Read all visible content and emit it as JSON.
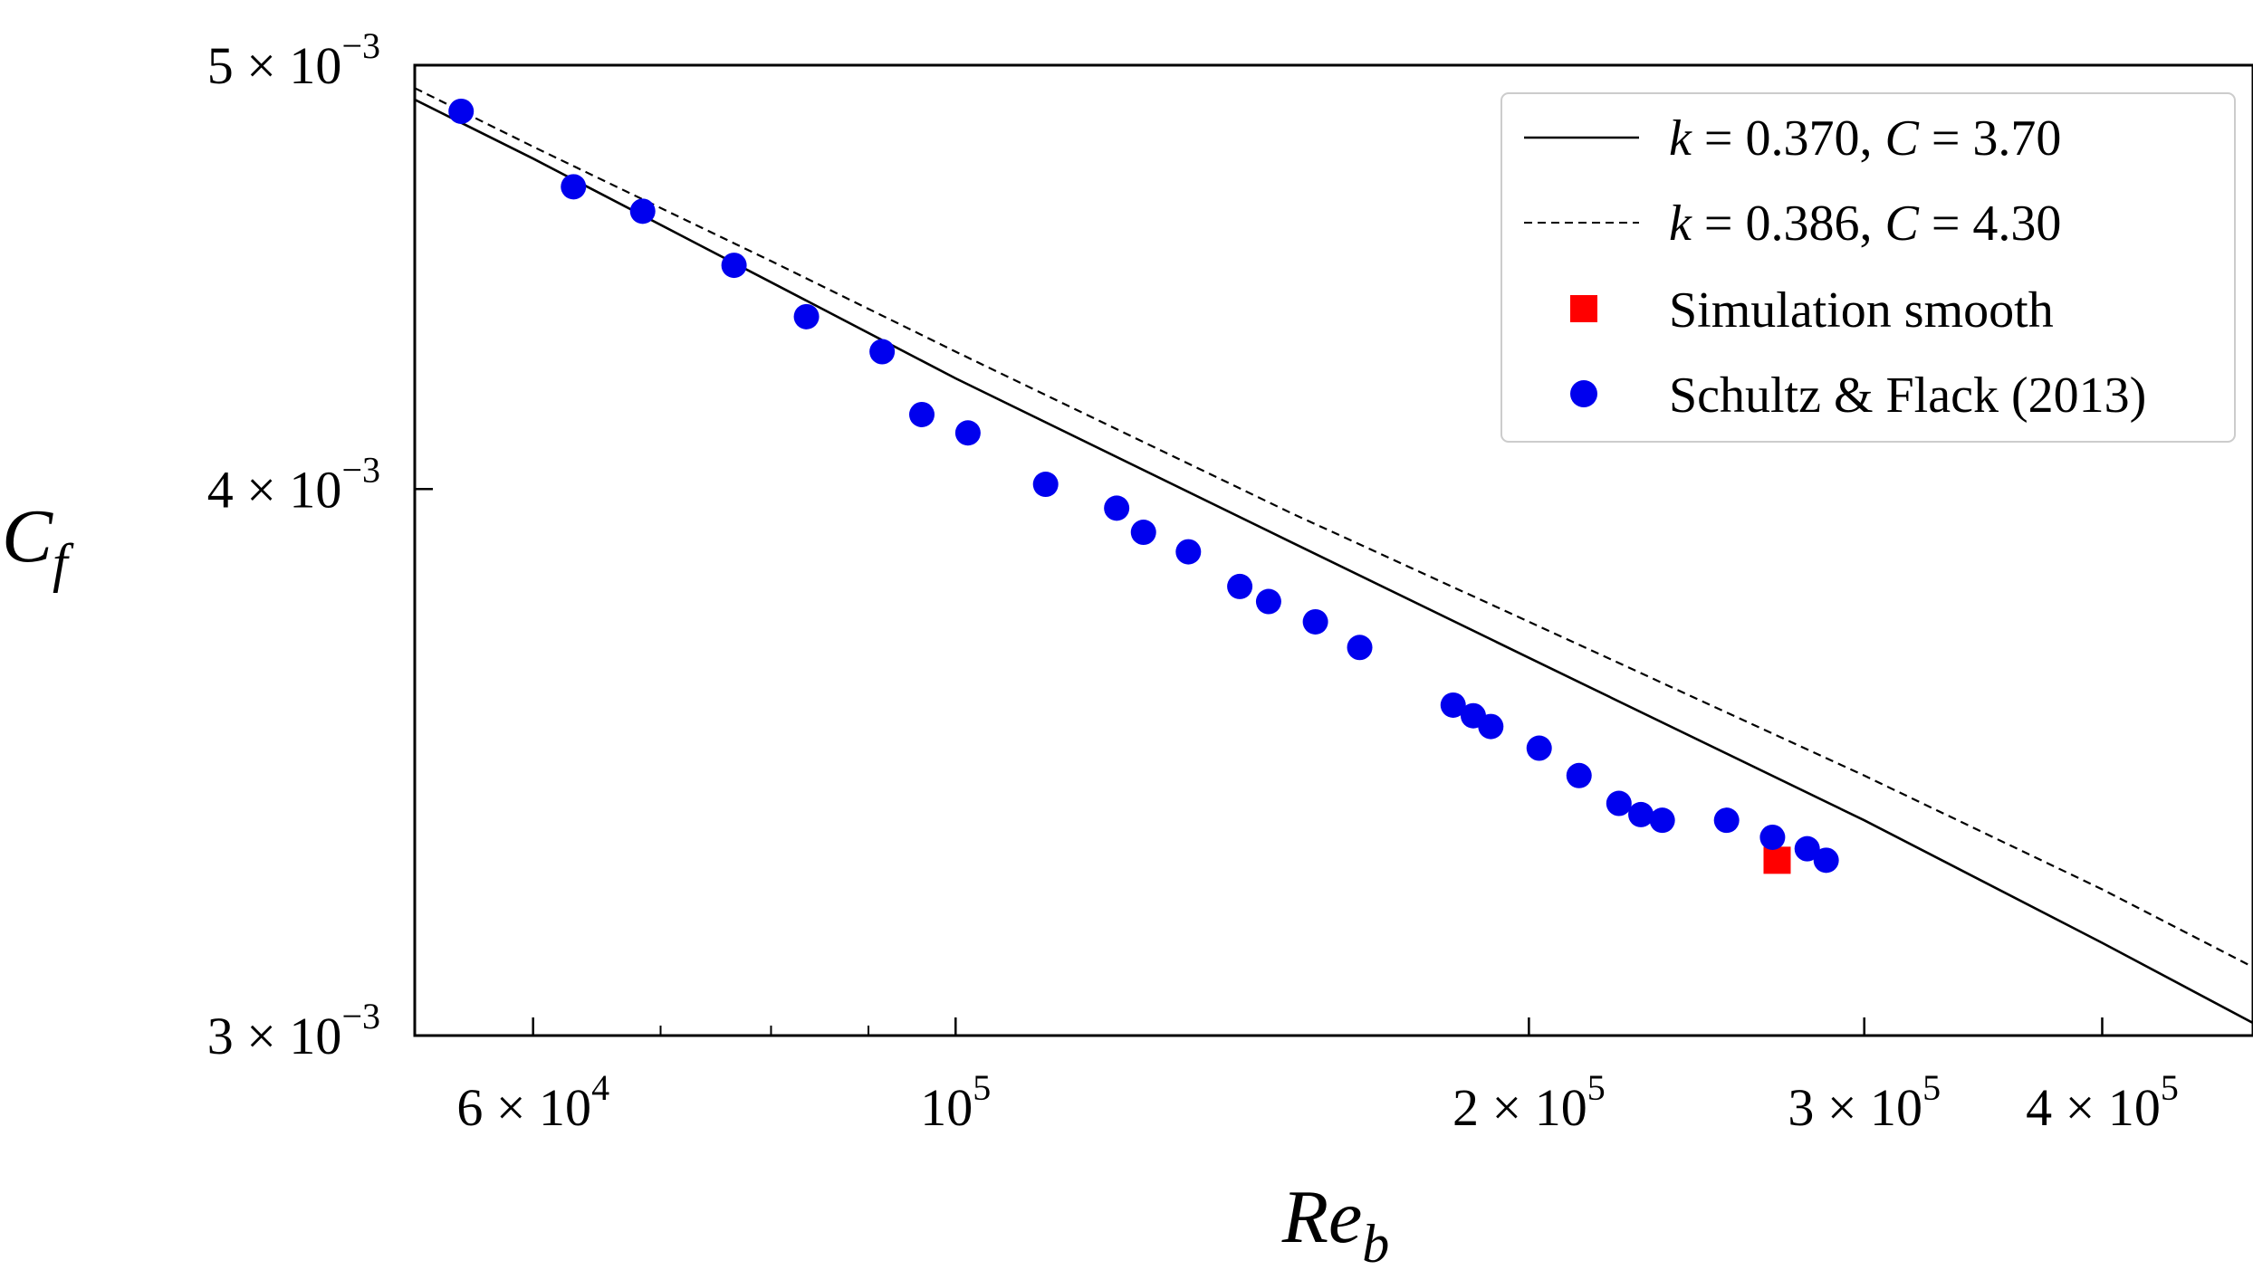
{
  "chart_data": {
    "type": "scatter",
    "xlabel": "Re",
    "xlabel_sub": "b",
    "ylabel": "C",
    "ylabel_sub": "f",
    "x_scale": "log",
    "y_scale": "log",
    "xlim": [
      52000,
      480000
    ],
    "ylim": [
      0.003,
      0.005
    ],
    "grid": false,
    "legend_position": "top-right",
    "x_ticks": [
      {
        "value": 60000,
        "mant": "6 × 10",
        "exp": "4"
      },
      {
        "value": 100000,
        "mant": "10",
        "exp": "5"
      },
      {
        "value": 200000,
        "mant": "2 × 10",
        "exp": "5"
      },
      {
        "value": 300000,
        "mant": "3 × 10",
        "exp": "5"
      },
      {
        "value": 400000,
        "mant": "4 × 10",
        "exp": "5"
      }
    ],
    "x_minor_ticks": [
      70000,
      80000,
      90000,
      300000
    ],
    "y_ticks": [
      {
        "value": 0.005,
        "mant": "5 × 10",
        "exp": "−3"
      },
      {
        "value": 0.004,
        "mant": "4 × 10",
        "exp": "−3"
      },
      {
        "value": 0.003,
        "mant": "3 × 10",
        "exp": "−3"
      }
    ],
    "series": [
      {
        "name_k": "k",
        "name_k_val": " = 0.370, ",
        "name_c": "C",
        "name_c_val": " = 3.70",
        "kind": "line",
        "style": "solid",
        "color": "#000000",
        "x": [
          52000,
          60000,
          80000,
          100000,
          150000,
          200000,
          300000,
          400000,
          480000
        ],
        "y": [
          0.00491,
          0.00476,
          0.00446,
          0.00424,
          0.00389,
          0.00366,
          0.00336,
          0.00315,
          0.00302
        ]
      },
      {
        "name_k": "k",
        "name_k_val": " = 0.386, ",
        "name_c": "C",
        "name_c_val": " = 4.30",
        "kind": "line",
        "style": "dashed",
        "color": "#000000",
        "x": [
          52000,
          60000,
          80000,
          100000,
          150000,
          200000,
          300000,
          400000,
          480000
        ],
        "y": [
          0.00494,
          0.00479,
          0.00451,
          0.0043,
          0.00395,
          0.00373,
          0.00344,
          0.00324,
          0.00311
        ]
      },
      {
        "name": "Simulation smooth",
        "kind": "marker",
        "marker": "square",
        "color": "#ff0000",
        "x": [
          270000
        ],
        "y": [
          0.00329
        ]
      },
      {
        "name": "Schultz & Flack (2013)",
        "kind": "marker",
        "marker": "circle",
        "color": "#0000ee",
        "x": [
          55000,
          63000,
          68500,
          76500,
          83500,
          91500,
          96000,
          101500,
          111500,
          121500,
          125500,
          132500,
          141000,
          146000,
          154500,
          163000,
          182500,
          187000,
          191000,
          202500,
          212500,
          223000,
          229000,
          235000,
          254000,
          268500,
          280000,
          286500
        ],
        "y": [
          0.00488,
          0.00469,
          0.00463,
          0.0045,
          0.00438,
          0.0043,
          0.00416,
          0.00412,
          0.00401,
          0.00396,
          0.00391,
          0.00387,
          0.0038,
          0.00377,
          0.00373,
          0.00368,
          0.00357,
          0.00355,
          0.00353,
          0.00349,
          0.00344,
          0.00339,
          0.00337,
          0.00336,
          0.00336,
          0.00333,
          0.00331,
          0.00329
        ]
      }
    ]
  }
}
